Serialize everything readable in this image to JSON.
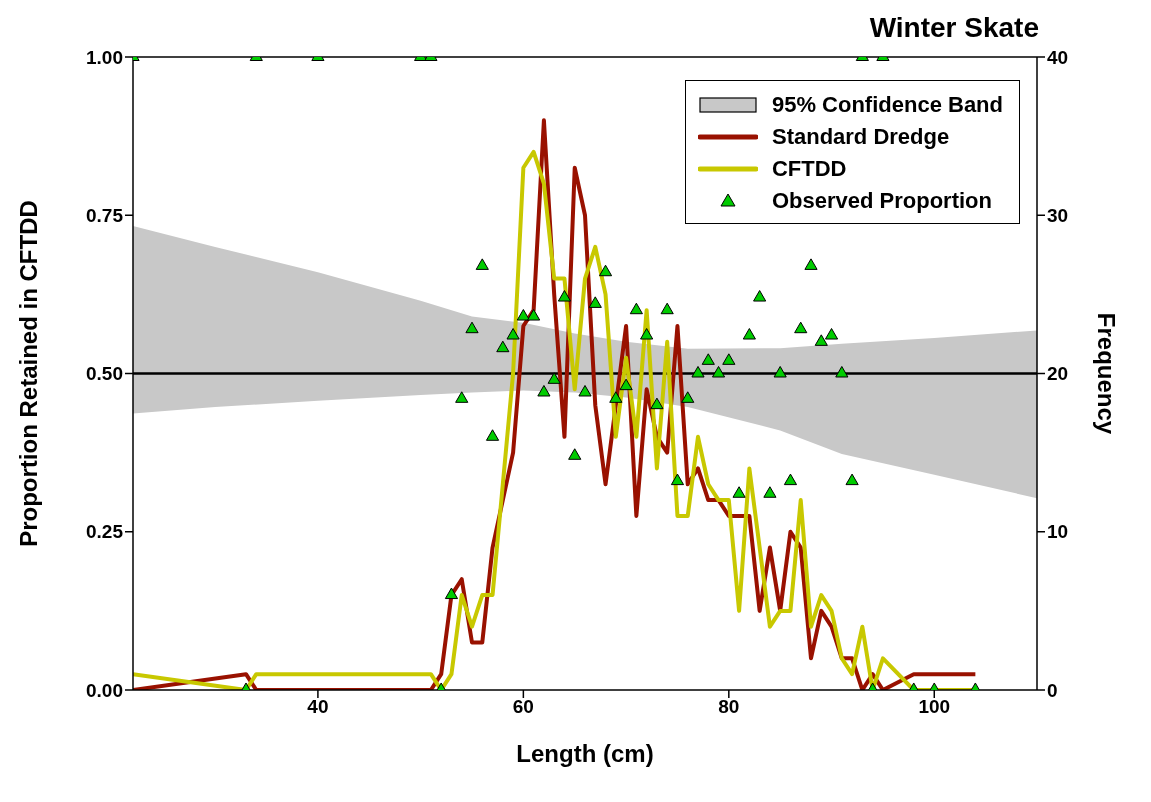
{
  "chart_data": {
    "type": "line",
    "title": "Winter Skate",
    "xlabel": "Length (cm)",
    "ylabel": "Proportion Retained in CFTDD",
    "y2label": "Frequency",
    "xlim": [
      22,
      110
    ],
    "xticks": [
      40,
      60,
      80,
      100
    ],
    "ylim": [
      0,
      1
    ],
    "yticks": [
      {
        "value": 0,
        "label": "0.00"
      },
      {
        "value": 0.25,
        "label": "0.25"
      },
      {
        "value": 0.5,
        "label": "0.50"
      },
      {
        "value": 0.75,
        "label": "0.75"
      },
      {
        "value": 1,
        "label": "1.00"
      }
    ],
    "y2lim": [
      0,
      40
    ],
    "y2ticks": [
      0,
      10,
      20,
      30,
      40
    ],
    "legend": "top right",
    "series": [
      {
        "name": "95% Confidence Band",
        "color": "#000000",
        "x": [
          22,
          30,
          40,
          50,
          55,
          60,
          65,
          70,
          76,
          85,
          91,
          100,
          110
        ],
        "values": [
          0.5,
          0.5,
          0.5,
          0.5,
          0.5,
          0.5,
          0.5,
          0.5,
          0.5,
          0.5,
          0.5,
          0.5,
          0.5
        ],
        "lower": [
          0.437,
          0.447,
          0.457,
          0.466,
          0.47,
          0.473,
          0.47,
          0.462,
          0.447,
          0.41,
          0.373,
          0.34,
          0.303
        ],
        "upper": [
          0.733,
          0.7,
          0.66,
          0.615,
          0.59,
          0.58,
          0.563,
          0.55,
          0.539,
          0.54,
          0.547,
          0.556,
          0.568
        ]
      },
      {
        "name": "Standard Dredge",
        "axis": "y2",
        "color": "#991100",
        "x": [
          22,
          33,
          34,
          51,
          52,
          53,
          54,
          55,
          56,
          57,
          58,
          59,
          60,
          61,
          62,
          63,
          64,
          65,
          66,
          67,
          68,
          69,
          70,
          71,
          72,
          73,
          74,
          75,
          76,
          77,
          78,
          79,
          80,
          81,
          82,
          83,
          84,
          85,
          86,
          87,
          88,
          89,
          90,
          91,
          92,
          93,
          94,
          95,
          98,
          104
        ],
        "values": [
          0,
          1,
          0,
          0,
          1,
          6,
          7,
          3,
          3,
          9,
          12,
          15,
          23,
          24,
          36,
          25,
          16,
          33,
          30,
          18,
          13,
          18,
          23,
          11,
          19,
          16,
          15,
          23,
          13,
          14,
          12,
          12,
          11,
          11,
          11,
          5,
          9,
          5,
          10,
          9,
          2,
          5,
          4,
          2,
          2,
          0,
          1,
          0,
          1,
          1
        ]
      },
      {
        "name": "CFTDD",
        "axis": "y2",
        "color": "#c8c800",
        "x": [
          22,
          33,
          34,
          51,
          52,
          53,
          54,
          55,
          56,
          57,
          58,
          59,
          60,
          61,
          62,
          63,
          64,
          65,
          66,
          67,
          68,
          69,
          70,
          71,
          72,
          73,
          74,
          75,
          76,
          77,
          78,
          79,
          80,
          81,
          82,
          83,
          84,
          85,
          86,
          87,
          88,
          89,
          90,
          91,
          92,
          93,
          94,
          95,
          98,
          104
        ],
        "values": [
          1,
          0,
          1,
          1,
          0,
          1,
          6,
          4,
          6,
          6,
          13,
          20,
          33,
          34,
          32,
          26,
          26,
          19,
          26,
          28,
          25,
          16,
          21,
          16,
          24,
          14,
          22,
          11,
          11,
          16,
          13,
          12,
          12,
          5,
          14,
          9,
          4,
          5,
          5,
          12,
          4,
          6,
          5,
          2,
          1,
          4,
          0,
          2,
          0,
          0
        ]
      },
      {
        "name": "Observed Proportion",
        "type": "scatter",
        "marker": "triangle",
        "color": "#00cc00",
        "x": [
          22,
          33,
          34,
          40,
          50,
          51,
          52,
          53,
          54,
          55,
          56,
          57,
          58,
          59,
          60,
          61,
          62,
          63,
          64,
          65,
          66,
          67,
          68,
          69,
          70,
          71,
          72,
          73,
          74,
          75,
          76,
          77,
          78,
          79,
          80,
          81,
          82,
          83,
          84,
          85,
          86,
          87,
          88,
          89,
          90,
          91,
          92,
          93,
          94,
          95,
          98,
          100,
          104
        ],
        "values": [
          1,
          0,
          1,
          1,
          1,
          1,
          0,
          0.15,
          0.46,
          0.57,
          0.67,
          0.4,
          0.54,
          0.56,
          0.59,
          0.59,
          0.47,
          0.49,
          0.62,
          0.37,
          0.47,
          0.61,
          0.66,
          0.46,
          0.48,
          0.6,
          0.56,
          0.45,
          0.6,
          0.33,
          0.46,
          0.5,
          0.52,
          0.5,
          0.52,
          0.31,
          0.56,
          0.62,
          0.31,
          0.5,
          0.33,
          0.57,
          0.67,
          0.55,
          0.56,
          0.5,
          0.33,
          1,
          0,
          1,
          0,
          0,
          0
        ]
      }
    ]
  }
}
